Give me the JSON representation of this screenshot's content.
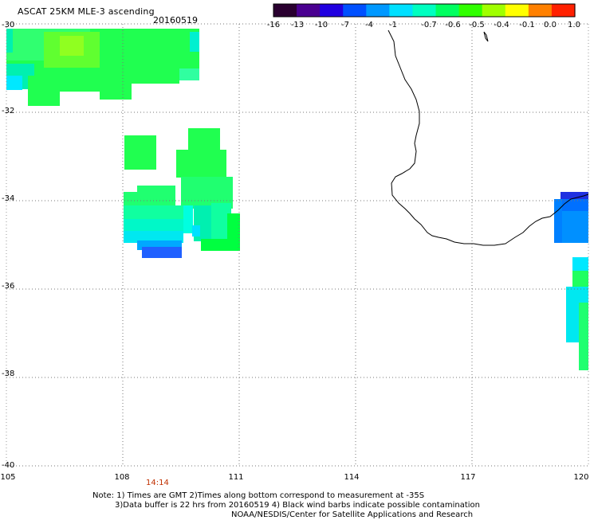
{
  "header": {
    "title": "ASCAT 25KM MLE-3 ascending",
    "date": "20160519"
  },
  "colorbar": {
    "ticks": [
      "-16",
      "-13",
      "-10",
      "-7",
      "-4",
      "-1",
      "-0.7",
      "-0.6",
      "-0.5",
      "-0.4",
      "-0.1",
      "0.0",
      "1.0"
    ],
    "colors": [
      "#2a0030",
      "#4a0090",
      "#2000e0",
      "#0050ff",
      "#0098ff",
      "#00e0ff",
      "#00ffc0",
      "#00ff60",
      "#30ff00",
      "#a0ff00",
      "#ffff00",
      "#ff8000",
      "#ff2000"
    ]
  },
  "map": {
    "lat_range": [
      -40,
      -30
    ],
    "lon_range": [
      105,
      120
    ],
    "lat_labels": [
      "-30",
      "-32",
      "-34",
      "-36",
      "-38",
      "-40"
    ],
    "lon_labels": [
      "105",
      "108",
      "111",
      "114",
      "117",
      "120"
    ],
    "time_label": "14:14"
  },
  "notes": {
    "line1": "Note: 1) Times are GMT 2)Times along bottom correspond to measurement at -35S",
    "line2": "3)Data buffer is 22 hrs from 20160519 4) Black wind barbs indicate possible contamination",
    "line3": "NOAA/NESDIS/Center for Satellite Applications and Research"
  }
}
